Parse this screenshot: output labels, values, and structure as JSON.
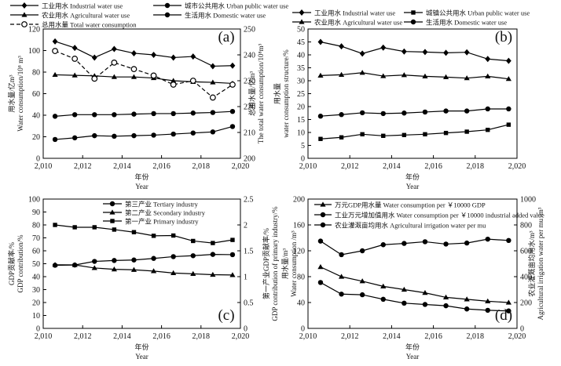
{
  "chart_data": [
    {
      "panel": "(a)",
      "type": "line",
      "legend": [
        {
          "name": "工业用水 Industrial water use"
        },
        {
          "name": "城市公共用水 Urban public water use"
        },
        {
          "name": "农业用水 Agricultural water use"
        },
        {
          "name": "生活用水 Domestic water use"
        },
        {
          "name": "总用水量 Total water consumption"
        }
      ],
      "xlabel": "年份\nYear",
      "x_ticks": [
        "2,010",
        "2,012",
        "2,014",
        "2,016",
        "2,018",
        "2,020"
      ],
      "xlim": [
        2010,
        2020
      ],
      "ylabel_left": "用水量/亿m³\nWater consumption/10⁸ m³",
      "ylim_left": [
        0,
        120
      ],
      "y_ticks_left": [
        "0",
        "20",
        "40",
        "60",
        "80",
        "100",
        "120"
      ],
      "ylabel_right": "总用水量/亿m³\nThe total water consumption/10⁸m³",
      "ylim_right": [
        200,
        250
      ],
      "y_ticks_right": [
        "200",
        "210",
        "220",
        "230",
        "240",
        "250"
      ],
      "x": [
        2010.6,
        2011.6,
        2012.6,
        2013.6,
        2014.6,
        2015.6,
        2016.6,
        2017.6,
        2018.6,
        2019.6
      ],
      "series": [
        {
          "name": "工业用水 Industrial water use",
          "marker": "diamond",
          "axis": "left",
          "values": [
            108.5,
            102.5,
            93.5,
            101.5,
            97.5,
            96,
            93.5,
            94.5,
            85.5,
            86
          ]
        },
        {
          "name": "城市公共用水 Urban public water use",
          "marker": "circle",
          "axis": "left",
          "values": [
            17.5,
            19,
            21,
            20.5,
            21,
            21.5,
            22.5,
            23.5,
            24.5,
            29.5
          ]
        },
        {
          "name": "农业用水 Agricultural water use",
          "marker": "triangle",
          "axis": "left",
          "values": [
            77.5,
            77,
            76.5,
            75.5,
            75.5,
            74.5,
            72,
            71,
            70.5,
            69.5
          ]
        },
        {
          "name": "生活用水 Domestic water use",
          "marker": "circle",
          "axis": "left",
          "values": [
            39,
            40.5,
            40.5,
            40.5,
            41,
            41.5,
            41.5,
            42,
            42.5,
            43.5
          ]
        },
        {
          "name": "总用水量 Total water consumption",
          "marker": "open-circle",
          "dashed": true,
          "axis": "right",
          "values": [
            241.5,
            238.5,
            230.8,
            237,
            234.5,
            232,
            228.5,
            230,
            223.5,
            228.5
          ]
        }
      ],
      "grid": false
    },
    {
      "panel": "(b)",
      "type": "line",
      "legend": [
        {
          "name": "工业用水 Industrial water use"
        },
        {
          "name": "城镇公共用水 Urban public water use"
        },
        {
          "name": "农业用水 Agricultural water use"
        },
        {
          "name": "生活用水 Domestic water use"
        }
      ],
      "xlabel": "年份\nYear",
      "x_ticks": [
        "2,010",
        "2,012",
        "2,014",
        "2,016",
        "2,018",
        "2,020"
      ],
      "xlim": [
        2010,
        2020
      ],
      "ylabel_left": "用水量\nwater consumption structure/%",
      "ylim_left": [
        0,
        50
      ],
      "y_ticks_left": [
        "0",
        "5",
        "10",
        "15",
        "20",
        "25",
        "30",
        "35",
        "40",
        "45",
        "50"
      ],
      "x": [
        2010.6,
        2011.6,
        2012.6,
        2013.6,
        2014.6,
        2015.6,
        2016.6,
        2017.6,
        2018.6,
        2019.6
      ],
      "series": [
        {
          "name": "工业用水 Industrial water use",
          "marker": "diamond",
          "axis": "left",
          "values": [
            45,
            43.3,
            40.5,
            42.8,
            41.3,
            41.1,
            40.8,
            41,
            38.4,
            37.7
          ]
        },
        {
          "name": "城镇公共用水 Urban public water use",
          "marker": "square",
          "axis": "left",
          "values": [
            7.5,
            8.1,
            9.3,
            8.7,
            9,
            9.3,
            9.8,
            10.3,
            11,
            13
          ]
        },
        {
          "name": "农业用水 Agricultural water use",
          "marker": "triangle",
          "axis": "left",
          "values": [
            32,
            32.3,
            33.1,
            31.8,
            32.2,
            31.7,
            31.4,
            31,
            31.7,
            30.7
          ]
        },
        {
          "name": "生活用水 Domestic water use",
          "marker": "circle",
          "axis": "left",
          "values": [
            16.3,
            16.9,
            17.6,
            17.3,
            17.5,
            17.9,
            18.3,
            18.3,
            19.1,
            19.1
          ]
        }
      ],
      "grid": false
    },
    {
      "panel": "(c)",
      "type": "line",
      "legend": [
        {
          "name": "第三产业 Tertiary industry"
        },
        {
          "name": "第二产业 Secondary industry"
        },
        {
          "name": "第一产业 Primary industry"
        }
      ],
      "xlabel": "年份\nYear",
      "x_ticks": [
        "2,010",
        "2,012",
        "2,014",
        "2,016",
        "2,018",
        "2,020"
      ],
      "xlim": [
        2010,
        2020
      ],
      "ylabel_left": "GDP贡献率/%\nGDP contribution/%",
      "ylim_left": [
        0,
        100
      ],
      "y_ticks_left": [
        "0",
        "10",
        "20",
        "30",
        "40",
        "50",
        "60",
        "70",
        "80",
        "90",
        "100"
      ],
      "ylabel_right": "第一产业GDP贡献率/%\nGDP contribution of primary industry/%",
      "ylim_right": [
        0,
        2.5
      ],
      "y_ticks_right": [
        "0",
        "0.5",
        "1",
        "1.5",
        "2",
        "2.5"
      ],
      "x": [
        2010.6,
        2011.6,
        2012.6,
        2013.6,
        2014.6,
        2015.6,
        2016.6,
        2017.6,
        2018.6,
        2019.6
      ],
      "series": [
        {
          "name": "第三产业 Tertiary industry",
          "marker": "circle",
          "axis": "left",
          "values": [
            48.8,
            49,
            51.8,
            52.5,
            52.9,
            54.1,
            55.5,
            56.2,
            57.2,
            57
          ]
        },
        {
          "name": "第二产业 Secondary industry",
          "marker": "triangle",
          "axis": "left",
          "values": [
            49.2,
            49.1,
            46.7,
            45.7,
            45.3,
            44.3,
            42.8,
            42.2,
            41.5,
            41.3
          ]
        },
        {
          "name": "第一产业 Primary industry",
          "marker": "square",
          "axis": "right",
          "values": [
            2.0,
            1.955,
            1.955,
            1.91,
            1.86,
            1.79,
            1.795,
            1.69,
            1.65,
            1.71
          ]
        }
      ],
      "grid": false
    },
    {
      "panel": "(d)",
      "type": "line",
      "legend": [
        {
          "name": "万元GDP用水量 Water consumption per ￥10000 GDP"
        },
        {
          "name": "工业万元增加值用水 Water consumption per ￥10000 industrial added value"
        },
        {
          "name": "农业灌溉亩均用水 Agricultural irrigation water per mu"
        }
      ],
      "xlabel": "年份\nYear",
      "x_ticks": [
        "2,010",
        "2,012",
        "2,014",
        "2,016",
        "2,018",
        "2,020"
      ],
      "xlim": [
        2010,
        2020
      ],
      "ylabel_left": "用水量/m³\nWater consumption /m³",
      "ylim_left": [
        0,
        200
      ],
      "y_ticks_left": [
        "0",
        "40",
        "80",
        "120",
        "160",
        "200"
      ],
      "ylabel_right": "农业灌溉亩均用水/m³\nAgricultural irrigation water per mu /m³",
      "ylim_right": [
        0,
        1000
      ],
      "y_ticks_right": [
        "0",
        "200",
        "400",
        "600",
        "800",
        "1000"
      ],
      "x": [
        2010.6,
        2011.6,
        2012.6,
        2013.6,
        2014.6,
        2015.6,
        2016.6,
        2017.6,
        2018.6,
        2019.6
      ],
      "series": [
        {
          "name": "万元GDP用水量 Water consumption per ￥10000 GDP",
          "marker": "triangle",
          "axis": "left",
          "values": [
            95,
            80,
            73,
            65,
            60,
            55,
            48,
            45,
            42,
            40
          ]
        },
        {
          "name": "工业万元增加值用水 Water consumption per ￥10000 industrial added value",
          "marker": "circle",
          "axis": "left",
          "values": [
            71,
            53,
            52,
            45,
            39,
            37,
            35,
            30,
            28,
            27
          ]
        },
        {
          "name": "农业灌溉亩均用水 Agricultural irrigation water per mu",
          "marker": "circle",
          "axis": "right",
          "values": [
            675,
            570,
            600,
            647,
            657,
            670,
            652,
            660,
            690,
            680
          ]
        }
      ],
      "grid": false
    }
  ]
}
